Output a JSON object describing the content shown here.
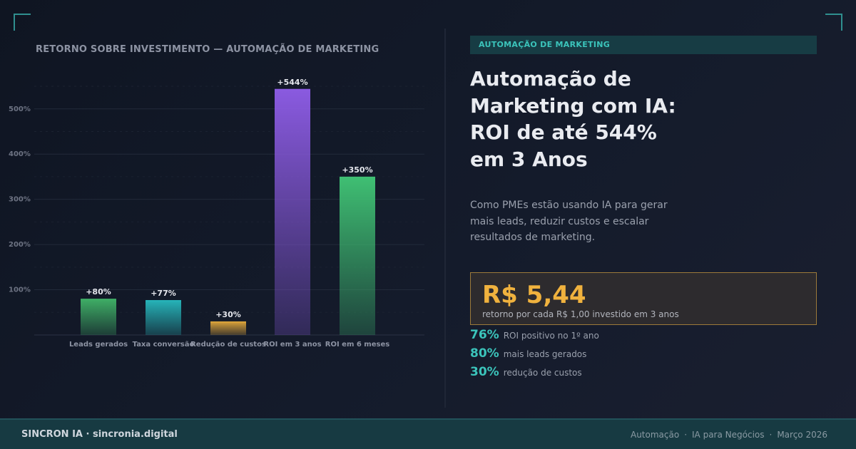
{
  "chart_data": {
    "type": "bar",
    "title": "RETORNO SOBRE INVESTIMENTO — AUTOMAÇÃO DE MARKETING",
    "categories": [
      "Leads gerados",
      "Taxa conversão",
      "Redução de custos",
      "ROI em 3 anos",
      "ROI em 6 meses"
    ],
    "values": [
      80,
      77,
      30,
      544,
      350
    ],
    "data_labels": [
      "+80%",
      "+77%",
      "+30%",
      "+544%",
      "+350%"
    ],
    "y_ticks": [
      100,
      200,
      300,
      400,
      500
    ],
    "y_tick_labels": [
      "100%",
      "200%",
      "300%",
      "400%",
      "500%"
    ],
    "ylim": [
      0,
      600
    ],
    "grid": true,
    "colors": [
      "#3fae66",
      "#26b3b8",
      "#d9a23a",
      "#8a5ae0",
      "#3fbf73"
    ]
  },
  "tag": "AUTOMAÇÃO DE MARKETING",
  "headline": [
    "Automação de",
    "Marketing com IA:",
    "ROI de até 544%",
    "em 3 Anos"
  ],
  "description": "Como PMEs estão usando IA para gerar mais leads, reduzir custos e escalar resultados de marketing.",
  "highlight": {
    "value": "R$ 5,44",
    "caption": "retorno por cada R$ 1,00 investido em 3 anos"
  },
  "stats": [
    {
      "pct": "76%",
      "label": "ROI positivo no 1º ano"
    },
    {
      "pct": "80%",
      "label": "mais leads gerados"
    },
    {
      "pct": "30%",
      "label": "redução de custos"
    }
  ],
  "footer": {
    "brand": "SINCRON IA · sincronia.digital",
    "meta": [
      "Automação",
      "IA para Negócios",
      "Março 2026"
    ]
  }
}
